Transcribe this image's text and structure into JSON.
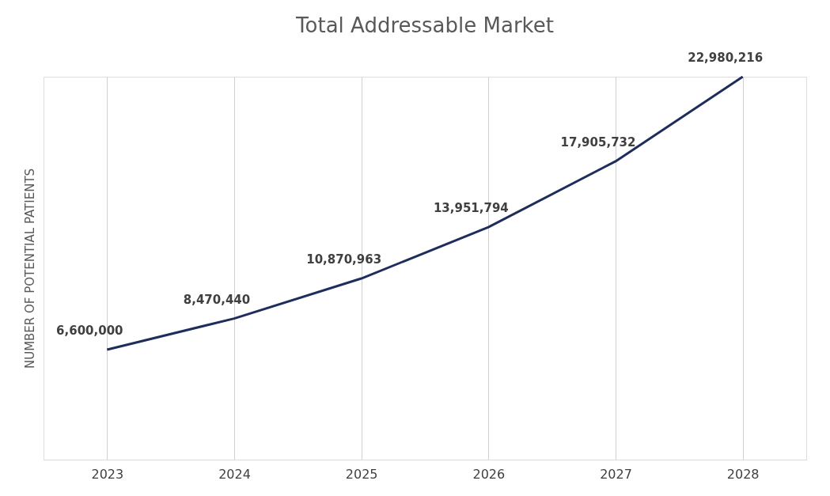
{
  "chart_data": {
    "type": "line",
    "title": "Total Addressable Market",
    "ylabel": "NUMBER OF POTENTIAL PATIENTS",
    "categories": [
      "2023",
      "2024",
      "2025",
      "2026",
      "2027",
      "2028"
    ],
    "series": [
      {
        "color": "#1f2d5c",
        "values": [
          6600000,
          8470440,
          10870963,
          13951794,
          17905732,
          22980216
        ],
        "value_labels": [
          "6,600,000",
          "8,470,440",
          "10,870,963",
          "13,951,794",
          "17,905,732",
          "22,980,216"
        ]
      }
    ],
    "tick_labels": "x",
    "grid": "x",
    "marker": "none",
    "line_style": "solid"
  }
}
